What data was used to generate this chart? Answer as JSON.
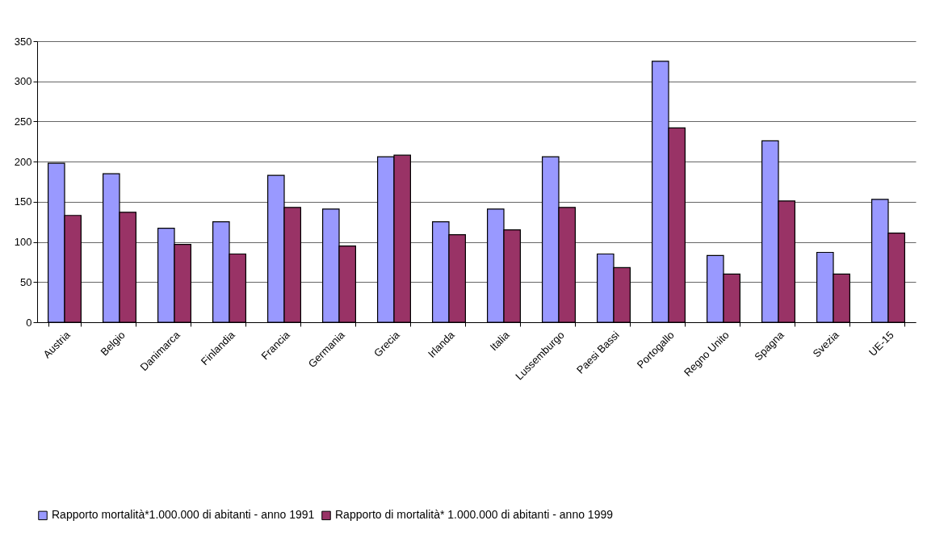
{
  "chart_data": {
    "type": "bar",
    "categories": [
      "Austria",
      "Belgio",
      "Danimarca",
      "Finlandia",
      "Francia",
      "Germania",
      "Grecia",
      "Irlanda",
      "Italia",
      "Lussemburgo",
      "Paesi Bassi",
      "Portogallo",
      "Regno Unito",
      "Spagna",
      "Svezia",
      "UE-15"
    ],
    "series": [
      {
        "name": "Rapporto mortalità*1.000.000 di abitanti - anno 1991",
        "color": "#9999ff",
        "values": [
          198,
          185,
          117,
          125,
          183,
          141,
          206,
          125,
          141,
          206,
          85,
          325,
          83,
          226,
          87,
          153
        ]
      },
      {
        "name": "Rapporto di mortalità* 1.000.000 di abitanti - anno 1999",
        "color": "#993366",
        "values": [
          133,
          137,
          97,
          85,
          143,
          95,
          208,
          109,
          115,
          143,
          68,
          242,
          60,
          151,
          60,
          111
        ]
      }
    ],
    "ylim": [
      0,
      350
    ],
    "yticks": [
      0,
      50,
      100,
      150,
      200,
      250,
      300,
      350
    ],
    "grid": "y",
    "legend": "bottom"
  }
}
